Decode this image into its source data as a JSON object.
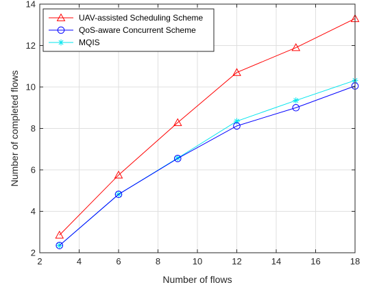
{
  "chart_data": {
    "type": "line",
    "title": "",
    "xlabel": "Number of flows",
    "ylabel": "Number of completed flows",
    "xlim": [
      2,
      18
    ],
    "ylim": [
      2,
      14
    ],
    "xticks": [
      2,
      4,
      6,
      8,
      10,
      12,
      14,
      16,
      18
    ],
    "yticks": [
      2,
      4,
      6,
      8,
      10,
      12,
      14
    ],
    "grid": true,
    "legend_position": "top-left",
    "x": [
      3,
      6,
      9,
      12,
      15,
      18
    ],
    "series": [
      {
        "name": "UAV-assisted Scheduling Scheme",
        "values": [
          2.85,
          5.75,
          8.28,
          10.7,
          11.9,
          13.3
        ],
        "color": "#ff0000",
        "marker": "triangle"
      },
      {
        "name": "QoS-aware Concurrent Scheme",
        "values": [
          2.35,
          4.82,
          6.55,
          8.12,
          9.0,
          10.05
        ],
        "color": "#0000ff",
        "marker": "circle"
      },
      {
        "name": "MQIS",
        "values": [
          2.35,
          4.82,
          6.57,
          8.35,
          9.35,
          10.32
        ],
        "color": "#00e5ee",
        "marker": "asterisk"
      }
    ]
  }
}
